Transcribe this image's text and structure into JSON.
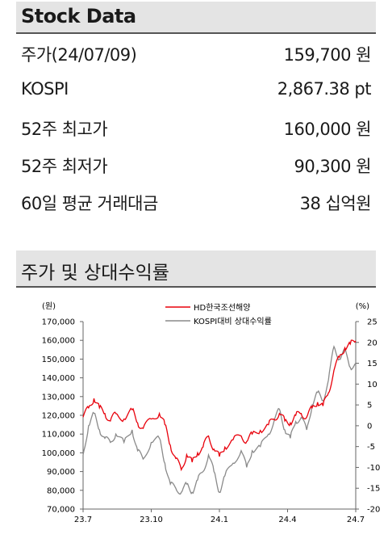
{
  "stock_table": {
    "title": "Stock Data",
    "rows": [
      {
        "label": "주가(24/07/09)",
        "value": "159,700 원"
      },
      {
        "label": "KOSPI",
        "value": "2,867.38 pt"
      },
      {
        "label": "52주 최고가",
        "value": "160,000 원"
      },
      {
        "label": "52주 최저가",
        "value": "90,300 원"
      },
      {
        "label": "60일 평균 거래대금",
        "value": "38 십억원"
      }
    ]
  },
  "chart_section": {
    "title": "주가 및 상대수익률"
  },
  "chart_data": {
    "type": "line",
    "title": "",
    "x_ticks": [
      "23.7",
      "23.10",
      "24.1",
      "24.4",
      "24.7"
    ],
    "y_left": {
      "unit": "(원)",
      "range": [
        70000,
        170000
      ],
      "ticks": [
        "70,000",
        "80,000",
        "90,000",
        "100,000",
        "110,000",
        "120,000",
        "130,000",
        "140,000",
        "150,000",
        "160,000",
        "170,000"
      ]
    },
    "y_right": {
      "unit": "(%)",
      "range": [
        -20,
        25
      ],
      "ticks": [
        "-20",
        "-15",
        "-10",
        "-5",
        "0",
        "5",
        "10",
        "15",
        "20",
        "25"
      ]
    },
    "legend": "top-center",
    "series": [
      {
        "name": "HD한국조선해양",
        "color": "#e8000b",
        "axis": "left",
        "t": [
          0,
          0.02,
          0.04,
          0.06,
          0.08,
          0.1,
          0.12,
          0.15,
          0.18,
          0.2,
          0.22,
          0.25,
          0.28,
          0.3,
          0.32,
          0.34,
          0.36,
          0.38,
          0.4,
          0.42,
          0.44,
          0.46,
          0.48,
          0.5,
          0.52,
          0.55,
          0.58,
          0.6,
          0.62,
          0.65,
          0.68,
          0.7,
          0.72,
          0.74,
          0.76,
          0.78,
          0.8,
          0.82,
          0.84,
          0.86,
          0.88,
          0.9,
          0.92,
          0.94,
          0.96,
          0.98,
          1.0
        ],
        "values": [
          119000,
          124000,
          129000,
          124000,
          121000,
          117000,
          121000,
          118000,
          123000,
          116000,
          113000,
          118000,
          121000,
          115000,
          104000,
          97000,
          91000,
          99000,
          95000,
          100000,
          103000,
          109000,
          102000,
          98000,
          103000,
          107000,
          109000,
          106000,
          110000,
          112000,
          115000,
          118000,
          121000,
          117000,
          116000,
          120000,
          121000,
          119000,
          124000,
          127000,
          125000,
          132000,
          144000,
          151000,
          156000,
          158000,
          159700
        ]
      },
      {
        "name": "KOSPI대비 상대수익률",
        "color": "#8a8a8a",
        "axis": "right",
        "t": [
          0,
          0.02,
          0.04,
          0.06,
          0.08,
          0.1,
          0.12,
          0.15,
          0.18,
          0.2,
          0.22,
          0.25,
          0.28,
          0.3,
          0.32,
          0.34,
          0.36,
          0.38,
          0.4,
          0.42,
          0.44,
          0.46,
          0.48,
          0.5,
          0.52,
          0.55,
          0.58,
          0.6,
          0.62,
          0.65,
          0.68,
          0.7,
          0.72,
          0.74,
          0.76,
          0.78,
          0.8,
          0.82,
          0.84,
          0.86,
          0.88,
          0.9,
          0.92,
          0.94,
          0.96,
          0.98,
          1.0
        ],
        "values": [
          -7,
          0,
          3,
          -1,
          -3,
          -4,
          -2,
          -4,
          -1,
          -6,
          -8,
          -4,
          -3,
          -9,
          -14,
          -15,
          -16,
          -14,
          -16,
          -13,
          -11,
          -7,
          -11,
          -16,
          -12,
          -9,
          -6,
          -10,
          -6,
          -5,
          -2,
          1,
          4,
          -1,
          -3,
          1,
          2,
          -1,
          5,
          8,
          6,
          11,
          19,
          16,
          18,
          14,
          15
        ]
      }
    ]
  }
}
